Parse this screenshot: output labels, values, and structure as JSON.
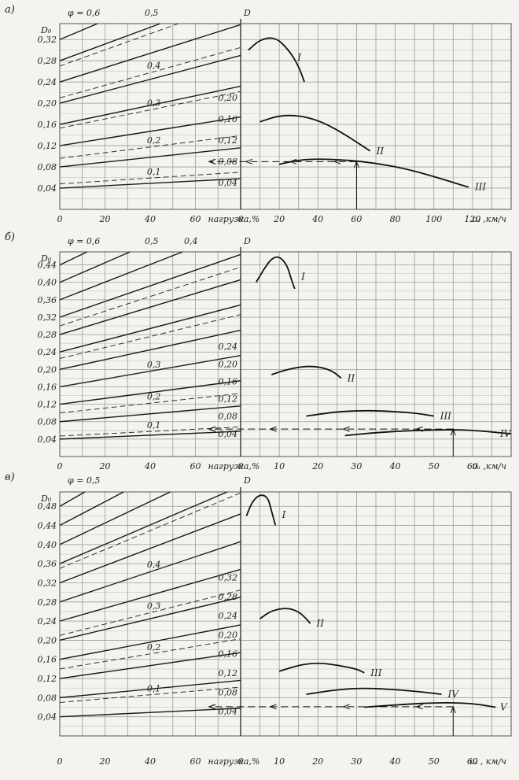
{
  "chart_data": [
    {
      "type": "line",
      "panel_label": "а)",
      "y_label": "D₀",
      "d_axis_label": "D",
      "phi_label": "φ = 0,6",
      "phi_label_2": "0,5",
      "load_axis_label": "нагрузка,%",
      "speed_axis_label": "υₐ ,км/ч",
      "load_ticks": [
        "0",
        "20",
        "40",
        "60"
      ],
      "speed_ticks": [
        "0",
        "20",
        "40",
        "60",
        "80",
        "100",
        "120"
      ],
      "y_ticks": [
        "0,04",
        "0,08",
        "0,12",
        "0,16",
        "0,20",
        "0,24",
        "0,28",
        "0,32"
      ],
      "ylim": [
        0,
        0.35
      ],
      "speed_max": 140,
      "d_ticks": [
        "0,04",
        "0,08",
        "0,12",
        "0,16",
        "0,20"
      ],
      "load_lines": [
        {
          "start": 0.04,
          "end": 0.058
        },
        {
          "start": 0.08,
          "end": 0.116
        },
        {
          "start": 0.12,
          "end": 0.174
        },
        {
          "start": 0.16,
          "end": 0.232
        },
        {
          "start": 0.2,
          "end": 0.29
        },
        {
          "start": 0.24,
          "end": 0.348
        },
        {
          "start": 0.28,
          "end": 0.406
        },
        {
          "start": 0.32,
          "end": 0.464
        }
      ],
      "phi_lines": [
        {
          "label": "0,1",
          "start": 0.048,
          "end": 0.07
        },
        {
          "label": "0,2",
          "start": 0.096,
          "end": 0.139
        },
        {
          "label": "0,3",
          "start": 0.153,
          "end": 0.222
        },
        {
          "label": "0,4",
          "start": 0.21,
          "end": 0.305
        },
        {
          "label": "",
          "start": 0.27,
          "end": 0.392
        }
      ],
      "curves": [
        {
          "name": "I",
          "points": [
            [
              4,
              0.3
            ],
            [
              10,
              0.32
            ],
            [
              18,
              0.325
            ],
            [
              25,
              0.3
            ],
            [
              30,
              0.27
            ],
            [
              33,
              0.24
            ]
          ]
        },
        {
          "name": "II",
          "points": [
            [
              10,
              0.165
            ],
            [
              20,
              0.177
            ],
            [
              30,
              0.177
            ],
            [
              40,
              0.168
            ],
            [
              50,
              0.15
            ],
            [
              60,
              0.127
            ],
            [
              67,
              0.11
            ]
          ]
        },
        {
          "name": "III",
          "points": [
            [
              20,
              0.085
            ],
            [
              30,
              0.093
            ],
            [
              40,
              0.095
            ],
            [
              55,
              0.093
            ],
            [
              70,
              0.087
            ],
            [
              85,
              0.077
            ],
            [
              100,
              0.062
            ],
            [
              115,
              0.045
            ],
            [
              118,
              0.042
            ]
          ]
        }
      ],
      "roman_labels": [
        "I",
        "II",
        "III"
      ],
      "read_speed": 60,
      "read_value": 0.09
    },
    {
      "type": "line",
      "panel_label": "б)",
      "y_label": "D₀",
      "d_axis_label": "D",
      "phi_label": "φ = 0,6",
      "phi_label_2": "0,5",
      "phi_label_3": "0,4",
      "load_axis_label": "нагрузка,%",
      "speed_axis_label": "υₐ ,км/ч",
      "load_ticks": [
        "0",
        "20",
        "40",
        "60"
      ],
      "speed_ticks": [
        "0",
        "10",
        "20",
        "30",
        "40",
        "50",
        "60"
      ],
      "y_ticks": [
        "0,04",
        "0,08",
        "0,12",
        "0,16",
        "0,20",
        "0,24",
        "0,28",
        "0,32",
        "0,36",
        "0,40",
        "0,44"
      ],
      "ylim": [
        0,
        0.47
      ],
      "speed_max": 70,
      "d_ticks": [
        "0,04",
        "0,08",
        "0,12",
        "0,16",
        "0,20",
        "0,24"
      ],
      "load_lines": [
        {
          "start": 0.04,
          "end": 0.058
        },
        {
          "start": 0.08,
          "end": 0.116
        },
        {
          "start": 0.12,
          "end": 0.174
        },
        {
          "start": 0.16,
          "end": 0.232
        },
        {
          "start": 0.2,
          "end": 0.29
        },
        {
          "start": 0.24,
          "end": 0.348
        },
        {
          "start": 0.28,
          "end": 0.406
        },
        {
          "start": 0.32,
          "end": 0.464
        },
        {
          "start": 0.36,
          "end": 0.522
        },
        {
          "start": 0.4,
          "end": 0.58
        },
        {
          "start": 0.44,
          "end": 0.638
        }
      ],
      "phi_lines": [
        {
          "label": "0,1",
          "start": 0.047,
          "end": 0.068
        },
        {
          "label": "0,2",
          "start": 0.1,
          "end": 0.145
        },
        {
          "label": "0,3",
          "start": 0.16,
          "end": 0.232
        },
        {
          "label": "",
          "start": 0.225,
          "end": 0.326
        },
        {
          "label": "",
          "start": 0.3,
          "end": 0.435
        }
      ],
      "curves": [
        {
          "name": "I",
          "points": [
            [
              4,
              0.4
            ],
            [
              6,
              0.43
            ],
            [
              8,
              0.455
            ],
            [
              10,
              0.46
            ],
            [
              12,
              0.44
            ],
            [
              13,
              0.41
            ],
            [
              14,
              0.385
            ]
          ]
        },
        {
          "name": "II",
          "points": [
            [
              8,
              0.188
            ],
            [
              12,
              0.2
            ],
            [
              17,
              0.208
            ],
            [
              21,
              0.205
            ],
            [
              24,
              0.195
            ],
            [
              26,
              0.18
            ]
          ]
        },
        {
          "name": "III",
          "points": [
            [
              17,
              0.093
            ],
            [
              25,
              0.103
            ],
            [
              33,
              0.106
            ],
            [
              40,
              0.103
            ],
            [
              45,
              0.1
            ],
            [
              50,
              0.093
            ]
          ]
        },
        {
          "name": "IV",
          "points": [
            [
              27,
              0.048
            ],
            [
              35,
              0.055
            ],
            [
              45,
              0.06
            ],
            [
              55,
              0.062
            ],
            [
              62,
              0.059
            ],
            [
              70,
              0.052
            ]
          ]
        }
      ],
      "roman_labels": [
        "I",
        "II",
        "III",
        "IV"
      ],
      "read_speed": 55,
      "read_value": 0.063
    },
    {
      "type": "line",
      "panel_label": "в)",
      "y_label": "D₀",
      "d_axis_label": "D",
      "phi_label": "φ = 0,5",
      "load_axis_label": "нагрузка,%",
      "speed_axis_label": "υₐ , км/ч",
      "load_ticks": [
        "0",
        "20",
        "40",
        "60"
      ],
      "speed_ticks": [
        "0",
        "10",
        "20",
        "30",
        "40",
        "50",
        "60"
      ],
      "y_ticks": [
        "0,04",
        "0,08",
        "0,12",
        "0,16",
        "0,20",
        "0,24",
        "0,28",
        "0,32",
        "0,36",
        "0,40",
        "0,44",
        "0,48"
      ],
      "ylim": [
        0,
        0.51
      ],
      "speed_max": 70,
      "d_ticks": [
        "0,04",
        "0,08",
        "0,12",
        "0,16",
        "0,20",
        "0,24",
        "0,28",
        "0,32"
      ],
      "load_lines": [
        {
          "start": 0.04,
          "end": 0.058
        },
        {
          "start": 0.08,
          "end": 0.116
        },
        {
          "start": 0.12,
          "end": 0.174
        },
        {
          "start": 0.16,
          "end": 0.232
        },
        {
          "start": 0.2,
          "end": 0.29
        },
        {
          "start": 0.24,
          "end": 0.348
        },
        {
          "start": 0.28,
          "end": 0.406
        },
        {
          "start": 0.32,
          "end": 0.464
        },
        {
          "start": 0.36,
          "end": 0.522
        },
        {
          "start": 0.4,
          "end": 0.58
        },
        {
          "start": 0.44,
          "end": 0.638
        },
        {
          "start": 0.48,
          "end": 0.696
        }
      ],
      "phi_lines": [
        {
          "label": "0,1",
          "start": 0.07,
          "end": 0.102
        },
        {
          "label": "0,2",
          "start": 0.14,
          "end": 0.203
        },
        {
          "label": "0,3",
          "start": 0.21,
          "end": 0.305
        },
        {
          "label": "0,4",
          "start": 0.28,
          "end": 0.406
        },
        {
          "label": "",
          "start": 0.35,
          "end": 0.508
        }
      ],
      "curves": [
        {
          "name": "I",
          "points": [
            [
              1.5,
              0.46
            ],
            [
              3,
              0.49
            ],
            [
              5,
              0.505
            ],
            [
              7,
              0.5
            ],
            [
              8,
              0.47
            ],
            [
              9,
              0.44
            ]
          ]
        },
        {
          "name": "II",
          "points": [
            [
              5,
              0.245
            ],
            [
              8,
              0.262
            ],
            [
              12,
              0.268
            ],
            [
              15,
              0.26
            ],
            [
              17,
              0.245
            ],
            [
              18,
              0.235
            ]
          ]
        },
        {
          "name": "III",
          "points": [
            [
              10,
              0.135
            ],
            [
              15,
              0.148
            ],
            [
              20,
              0.153
            ],
            [
              25,
              0.148
            ],
            [
              30,
              0.14
            ],
            [
              32,
              0.132
            ]
          ]
        },
        {
          "name": "IV",
          "points": [
            [
              17,
              0.087
            ],
            [
              25,
              0.097
            ],
            [
              32,
              0.1
            ],
            [
              40,
              0.097
            ],
            [
              47,
              0.092
            ],
            [
              52,
              0.087
            ]
          ]
        },
        {
          "name": "V",
          "points": [
            [
              32,
              0.06
            ],
            [
              42,
              0.066
            ],
            [
              52,
              0.07
            ],
            [
              60,
              0.068
            ],
            [
              66,
              0.06
            ]
          ]
        }
      ],
      "roman_labels": [
        "I",
        "II",
        "III",
        "IV",
        "V"
      ],
      "read_speed": 55,
      "read_value": 0.061
    }
  ]
}
